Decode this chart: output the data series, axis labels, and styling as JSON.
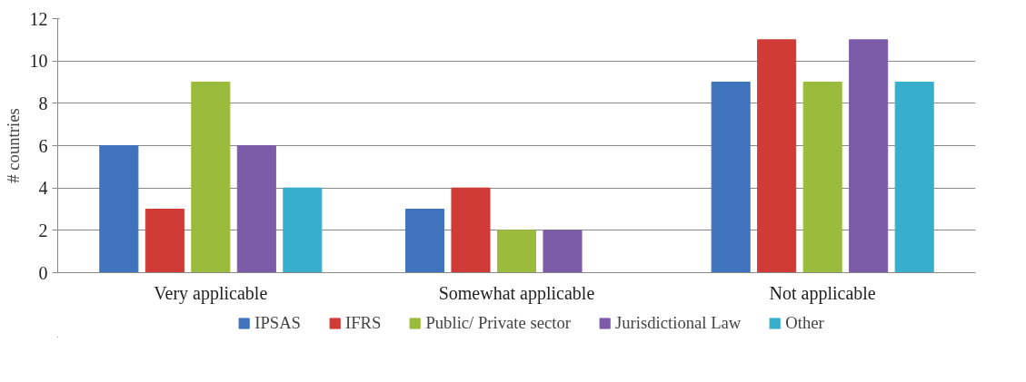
{
  "chart_data": {
    "type": "bar",
    "ylabel": "# countries",
    "categories": [
      "Very applicable",
      "Somewhat applicable",
      "Not applicable"
    ],
    "series": [
      {
        "name": "IPSAS",
        "color": "#3f74bd",
        "values": [
          6,
          3,
          9
        ]
      },
      {
        "name": "IFRS",
        "color": "#d03b37",
        "values": [
          3,
          4,
          11
        ]
      },
      {
        "name": "Public/ Private sector",
        "color": "#9bbb3c",
        "values": [
          9,
          2,
          9
        ]
      },
      {
        "name": "Jurisdictional Law",
        "color": "#7c5ca8",
        "values": [
          6,
          2,
          11
        ]
      },
      {
        "name": "Other",
        "color": "#37afcc",
        "values": [
          4,
          0,
          9
        ]
      }
    ],
    "ylim": [
      0,
      12
    ],
    "yticks": [
      0,
      2,
      4,
      6,
      8,
      10,
      12
    ],
    "grid": "y",
    "legend": "bottom"
  }
}
